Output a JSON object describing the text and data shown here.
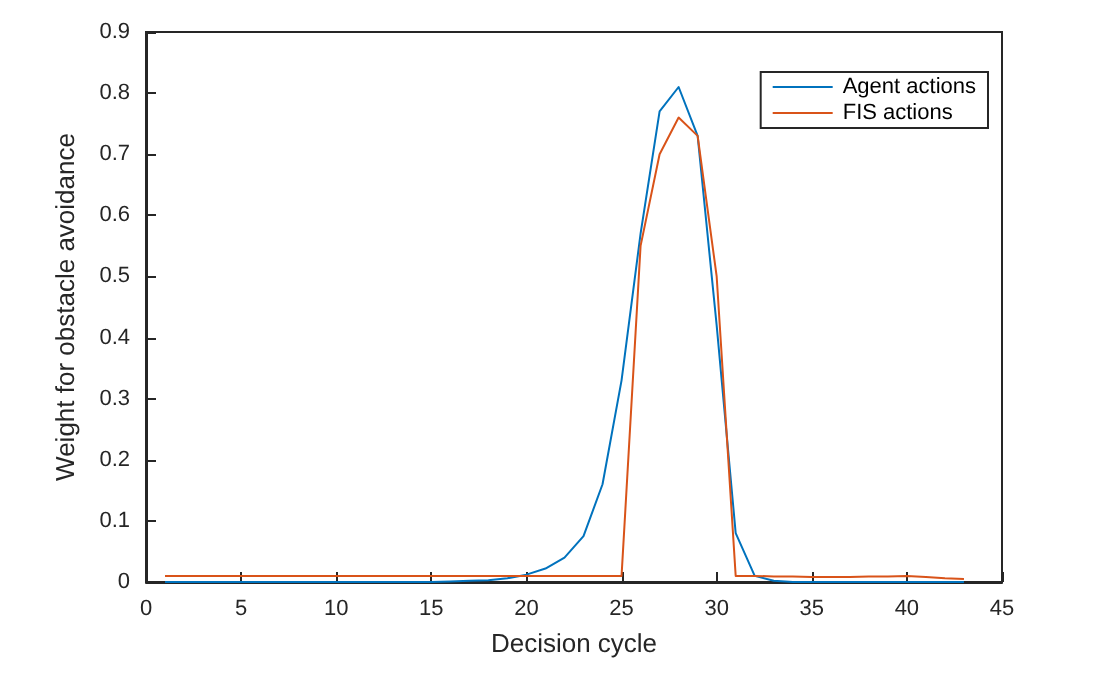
{
  "chart_data": {
    "type": "line",
    "xlabel": "Decision cycle",
    "ylabel": "Weight for obstacle avoidance",
    "x": [
      1,
      2,
      3,
      4,
      5,
      6,
      7,
      8,
      9,
      10,
      11,
      12,
      13,
      14,
      15,
      16,
      17,
      18,
      19,
      20,
      21,
      22,
      23,
      24,
      25,
      26,
      27,
      28,
      29,
      30,
      31,
      32,
      33,
      34,
      35,
      36,
      37,
      38,
      39,
      40,
      41,
      42,
      43
    ],
    "series": [
      {
        "name": "Agent actions",
        "color": "#0072bd",
        "values": [
          0,
          0,
          0,
          0,
          0,
          0,
          0,
          0,
          0,
          0,
          0,
          0,
          0,
          0,
          0,
          0.001,
          0.002,
          0.003,
          0.006,
          0.012,
          0.022,
          0.04,
          0.075,
          0.16,
          0.33,
          0.57,
          0.77,
          0.81,
          0.73,
          0.42,
          0.08,
          0.01,
          0.002,
          0,
          0,
          0,
          0,
          0,
          0,
          0,
          0,
          0,
          0
        ]
      },
      {
        "name": "FIS actions",
        "color": "#d95319",
        "values": [
          0.01,
          0.01,
          0.01,
          0.01,
          0.01,
          0.01,
          0.01,
          0.01,
          0.01,
          0.01,
          0.01,
          0.01,
          0.01,
          0.01,
          0.01,
          0.01,
          0.01,
          0.01,
          0.01,
          0.01,
          0.01,
          0.01,
          0.01,
          0.01,
          0.01,
          0.55,
          0.7,
          0.76,
          0.73,
          0.5,
          0.01,
          0.01,
          0.009,
          0.009,
          0.008,
          0.008,
          0.008,
          0.009,
          0.009,
          0.01,
          0.008,
          0.006,
          0.005
        ]
      }
    ],
    "xlim": [
      0,
      45
    ],
    "xticks": [
      0,
      5,
      10,
      15,
      20,
      25,
      30,
      35,
      40,
      45
    ],
    "ylim": [
      0,
      0.9
    ],
    "yticks": [
      0,
      0.1,
      0.2,
      0.3,
      0.4,
      0.5,
      0.6,
      0.7,
      0.8,
      0.9
    ],
    "grid": false,
    "legend": "top right",
    "marker": "none",
    "line_style": "solid"
  }
}
